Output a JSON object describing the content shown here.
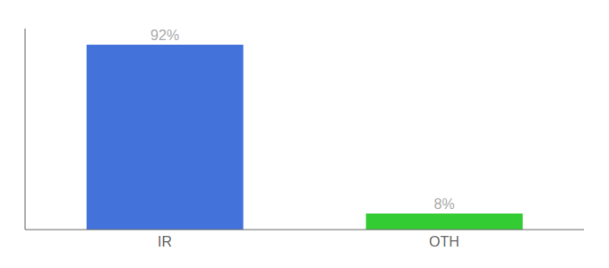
{
  "chart_data": {
    "type": "bar",
    "categories": [
      "IR",
      "OTH"
    ],
    "values": [
      92,
      8
    ],
    "value_labels": [
      "92%",
      "8%"
    ],
    "colors": [
      "#4472db",
      "#33cc33"
    ],
    "ylim": [
      0,
      100
    ],
    "data_labels": true,
    "tick_labels": "x",
    "grid": false
  }
}
